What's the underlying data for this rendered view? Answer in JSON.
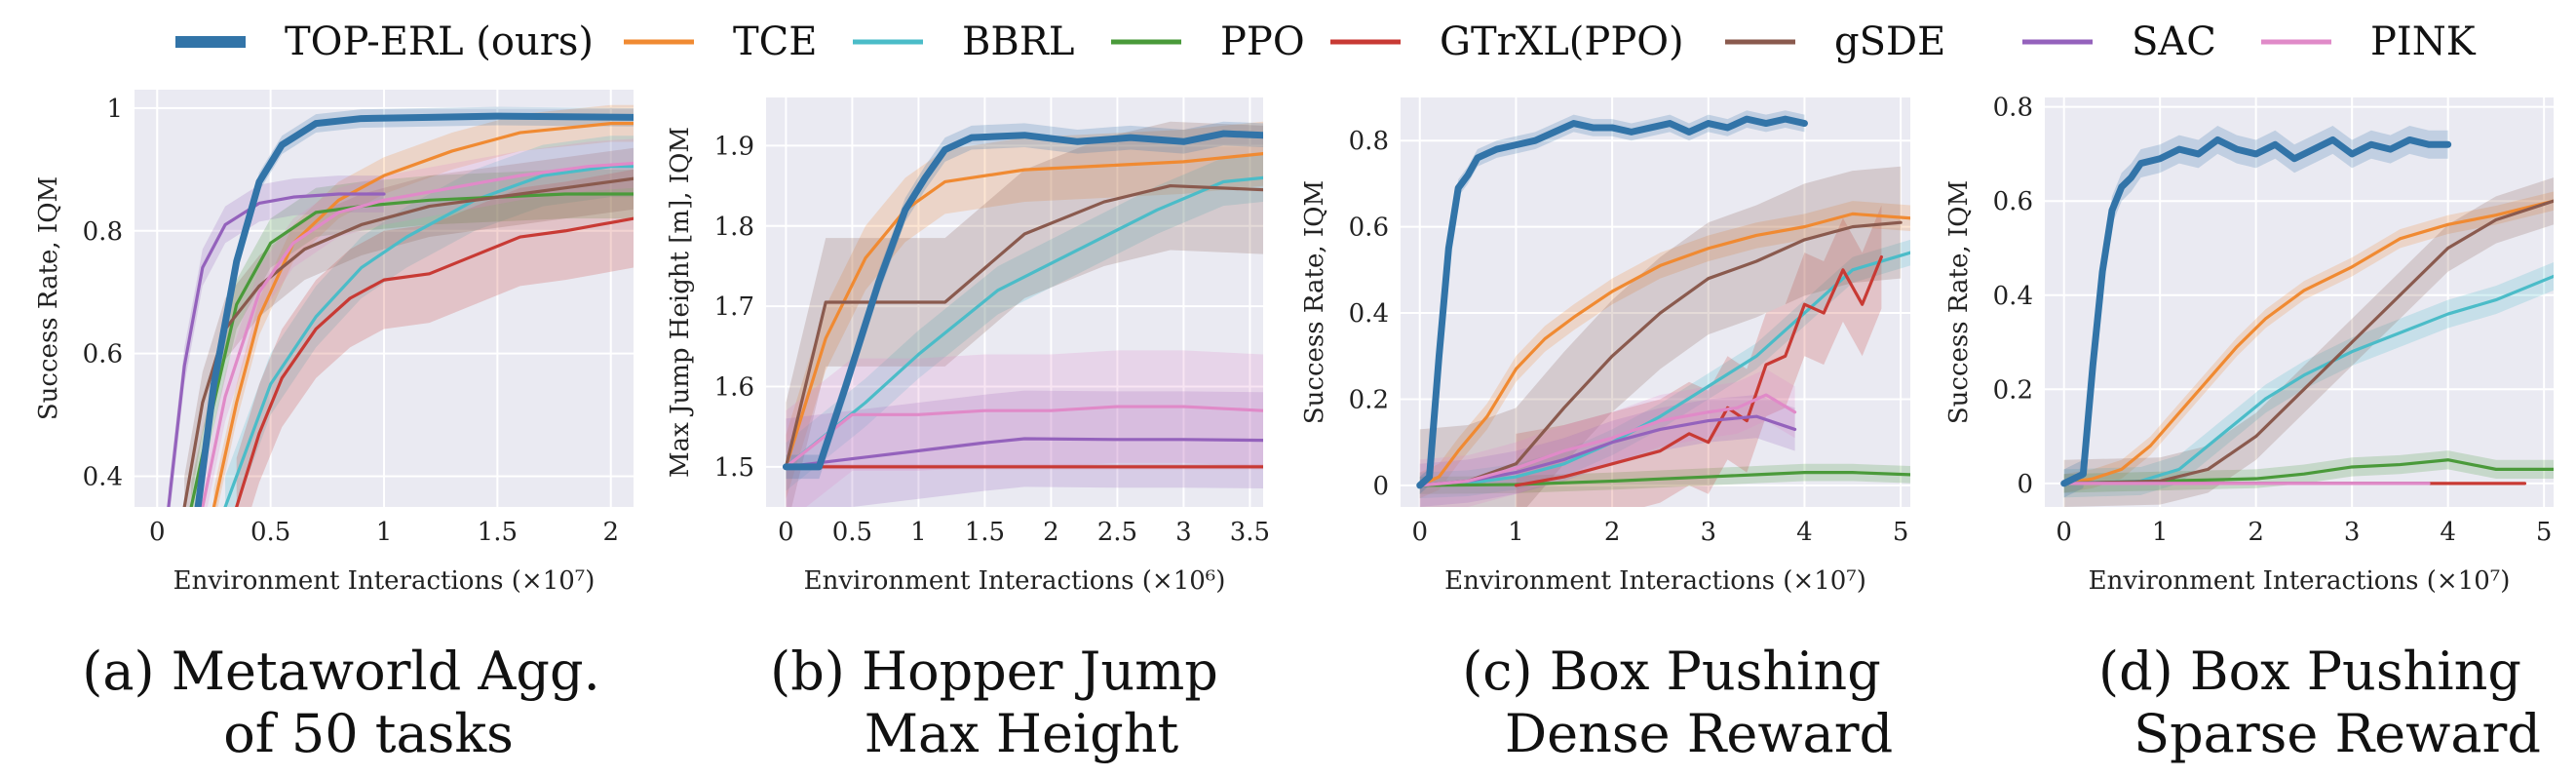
{
  "legend": [
    {
      "name": "TOP-ERL (ours)",
      "color": "#3274a8",
      "bold": true
    },
    {
      "name": "TCE",
      "color": "#f08a32"
    },
    {
      "name": "BBRL",
      "color": "#4bbcc8"
    },
    {
      "name": "PPO",
      "color": "#4a9a3a"
    },
    {
      "name": "GTrXL(PPO)",
      "color": "#c83a34"
    },
    {
      "name": "gSDE",
      "color": "#8a5a4e"
    },
    {
      "name": "SAC",
      "color": "#9462bc"
    },
    {
      "name": "PINK",
      "color": "#e08ac8"
    }
  ],
  "captions": [
    [
      "(a) Metaworld Agg.",
      "of 50 tasks"
    ],
    [
      "(b) Hopper Jump",
      "Max Height"
    ],
    [
      "(c) Box Pushing",
      "Dense Reward"
    ],
    [
      "(d) Box Pushing",
      "Sparse Reward"
    ]
  ],
  "chart_data": [
    {
      "type": "line",
      "xlabel": "Environment Interactions (×10⁷)",
      "ylabel": "Success Rate, IQM",
      "xlim": [
        -0.1,
        2.1
      ],
      "ylim": [
        0.35,
        1.03
      ],
      "xticks": [
        0,
        0.5,
        1,
        1.5,
        2
      ],
      "xtick_labels": [
        "0",
        "0.5",
        "1",
        "1.5",
        "2"
      ],
      "yticks": [
        0.4,
        0.6,
        0.8,
        1.0
      ],
      "ytick_labels": [
        "0.4",
        "0.6",
        "0.8",
        "1"
      ],
      "grid": true,
      "series": [
        {
          "name": "TOP-ERL (ours)",
          "band": 0.015,
          "x": [
            0.18,
            0.25,
            0.35,
            0.45,
            0.55,
            0.7,
            0.9,
            1.2,
            1.5,
            1.8,
            2.1
          ],
          "y": [
            0.35,
            0.55,
            0.75,
            0.88,
            0.94,
            0.975,
            0.983,
            0.985,
            0.987,
            0.986,
            0.985
          ]
        },
        {
          "name": "TCE",
          "band": 0.03,
          "x": [
            0.25,
            0.35,
            0.45,
            0.6,
            0.8,
            1.0,
            1.3,
            1.6,
            2.0,
            2.1
          ],
          "y": [
            0.35,
            0.52,
            0.66,
            0.78,
            0.85,
            0.89,
            0.93,
            0.96,
            0.975,
            0.975
          ]
        },
        {
          "name": "BBRL",
          "band": 0.05,
          "x": [
            0.3,
            0.4,
            0.5,
            0.7,
            0.9,
            1.1,
            1.4,
            1.7,
            2.0,
            2.1
          ],
          "y": [
            0.35,
            0.45,
            0.55,
            0.66,
            0.74,
            0.79,
            0.85,
            0.89,
            0.905,
            0.905
          ]
        },
        {
          "name": "PPO",
          "band": 0.04,
          "x": [
            0.15,
            0.25,
            0.35,
            0.5,
            0.7,
            0.9,
            1.2,
            1.5,
            1.8,
            2.1
          ],
          "y": [
            0.35,
            0.52,
            0.68,
            0.78,
            0.83,
            0.84,
            0.85,
            0.855,
            0.86,
            0.86
          ]
        },
        {
          "name": "GTrXL(PPO)",
          "band": 0.08,
          "x": [
            0.35,
            0.45,
            0.55,
            0.7,
            0.85,
            1.0,
            1.2,
            1.4,
            1.6,
            1.8,
            1.95,
            2.1
          ],
          "y": [
            0.35,
            0.47,
            0.56,
            0.64,
            0.69,
            0.72,
            0.73,
            0.76,
            0.79,
            0.8,
            0.81,
            0.82
          ]
        },
        {
          "name": "gSDE",
          "band": 0.05,
          "x": [
            0.12,
            0.2,
            0.3,
            0.45,
            0.65,
            0.9,
            1.2,
            1.5,
            1.8,
            2.1
          ],
          "y": [
            0.35,
            0.52,
            0.64,
            0.71,
            0.77,
            0.81,
            0.84,
            0.855,
            0.87,
            0.885
          ]
        },
        {
          "name": "SAC",
          "band": 0.03,
          "x": [
            0.05,
            0.12,
            0.2,
            0.3,
            0.45,
            0.6,
            0.8,
            1.0
          ],
          "y": [
            0.35,
            0.58,
            0.74,
            0.81,
            0.845,
            0.855,
            0.86,
            0.86
          ]
        },
        {
          "name": "PINK",
          "band": 0.04,
          "x": [
            0.2,
            0.3,
            0.45,
            0.6,
            0.8,
            1.0,
            1.3,
            1.6,
            1.9,
            2.1
          ],
          "y": [
            0.35,
            0.53,
            0.7,
            0.78,
            0.83,
            0.85,
            0.87,
            0.89,
            0.905,
            0.91
          ]
        }
      ]
    },
    {
      "type": "line",
      "xlabel": "Environment Interactions (×10⁶)",
      "ylabel": "Max Jump Height [m], IQM",
      "xlim": [
        -0.15,
        3.6
      ],
      "ylim": [
        1.45,
        1.96
      ],
      "xticks": [
        0,
        0.5,
        1,
        1.5,
        2,
        2.5,
        3,
        3.5
      ],
      "xtick_labels": [
        "0",
        "0.5",
        "1",
        "1.5",
        "2",
        "2.5",
        "3",
        "3.5"
      ],
      "yticks": [
        1.5,
        1.6,
        1.7,
        1.8,
        1.9
      ],
      "ytick_labels": [
        "1.5",
        "1.6",
        "1.7",
        "1.8",
        "1.9"
      ],
      "grid": true,
      "series": [
        {
          "name": "TOP-ERL (ours)",
          "band": 0.015,
          "x": [
            0,
            0.25,
            0.45,
            0.7,
            0.9,
            1.05,
            1.2,
            1.4,
            1.8,
            2.2,
            2.6,
            3.0,
            3.3,
            3.6
          ],
          "y": [
            1.5,
            1.5,
            1.6,
            1.73,
            1.82,
            1.86,
            1.895,
            1.91,
            1.913,
            1.905,
            1.91,
            1.905,
            1.915,
            1.913
          ]
        },
        {
          "name": "TCE",
          "band": 0.04,
          "x": [
            0,
            0.3,
            0.6,
            0.9,
            1.2,
            1.8,
            2.4,
            3.0,
            3.6
          ],
          "y": [
            1.5,
            1.66,
            1.76,
            1.82,
            1.855,
            1.87,
            1.875,
            1.88,
            1.89
          ]
        },
        {
          "name": "BBRL",
          "band": 0.03,
          "x": [
            0,
            0.3,
            0.6,
            1.0,
            1.6,
            2.2,
            2.8,
            3.3,
            3.6
          ],
          "y": [
            1.5,
            1.54,
            1.58,
            1.64,
            1.72,
            1.77,
            1.82,
            1.855,
            1.86
          ]
        },
        {
          "name": "GTrXL(PPO)",
          "band": 0.003,
          "x": [
            0,
            3.6
          ],
          "y": [
            1.5,
            1.5
          ]
        },
        {
          "name": "gSDE",
          "band": 0.08,
          "x": [
            0,
            0.3,
            1.2,
            1.8,
            2.4,
            2.9,
            3.6
          ],
          "y": [
            1.5,
            1.705,
            1.705,
            1.79,
            1.83,
            1.85,
            1.845
          ]
        },
        {
          "name": "SAC",
          "band": 0.06,
          "x": [
            0,
            0.5,
            1.0,
            1.5,
            1.8,
            2.5,
            3.0,
            3.6
          ],
          "y": [
            1.5,
            1.51,
            1.52,
            1.53,
            1.535,
            1.534,
            1.534,
            1.533
          ]
        },
        {
          "name": "PINK",
          "band": 0.07,
          "x": [
            0,
            0.5,
            1.0,
            1.5,
            2.0,
            2.5,
            3.0,
            3.6
          ],
          "y": [
            1.5,
            1.565,
            1.565,
            1.57,
            1.57,
            1.575,
            1.575,
            1.57
          ]
        }
      ]
    },
    {
      "type": "line",
      "xlabel": "Environment Interactions (×10⁷)",
      "ylabel": "Success Rate, IQM",
      "xlim": [
        -0.2,
        5.1
      ],
      "ylim": [
        -0.05,
        0.9
      ],
      "xticks": [
        0,
        1,
        2,
        3,
        4,
        5
      ],
      "xtick_labels": [
        "0",
        "1",
        "2",
        "3",
        "4",
        "5"
      ],
      "yticks": [
        0,
        0.2,
        0.4,
        0.6,
        0.8
      ],
      "ytick_labels": [
        "0",
        "0.2",
        "0.4",
        "0.6",
        "0.8"
      ],
      "grid": true,
      "series": [
        {
          "name": "TOP-ERL (ours)",
          "band": 0.02,
          "x": [
            0,
            0.1,
            0.2,
            0.3,
            0.4,
            0.5,
            0.6,
            0.7,
            0.8,
            1.0,
            1.2,
            1.4,
            1.6,
            1.8,
            2.0,
            2.2,
            2.4,
            2.6,
            2.8,
            3.0,
            3.2,
            3.4,
            3.6,
            3.8,
            4.0
          ],
          "y": [
            0,
            0.02,
            0.3,
            0.55,
            0.69,
            0.72,
            0.76,
            0.77,
            0.78,
            0.79,
            0.8,
            0.82,
            0.84,
            0.83,
            0.83,
            0.82,
            0.83,
            0.84,
            0.82,
            0.84,
            0.83,
            0.85,
            0.84,
            0.85,
            0.84
          ]
        },
        {
          "name": "TCE",
          "band": 0.03,
          "x": [
            0,
            0.2,
            0.4,
            0.7,
            1.0,
            1.3,
            1.6,
            2.0,
            2.5,
            3.0,
            3.5,
            4.0,
            4.5,
            5.1
          ],
          "y": [
            0,
            0.02,
            0.08,
            0.16,
            0.27,
            0.34,
            0.39,
            0.45,
            0.51,
            0.55,
            0.58,
            0.6,
            0.63,
            0.62
          ]
        },
        {
          "name": "BBRL",
          "band": 0.03,
          "x": [
            0,
            0.5,
            1.0,
            1.5,
            2.0,
            2.5,
            3.0,
            3.5,
            4.0,
            4.5,
            5.1
          ],
          "y": [
            0,
            0.005,
            0.02,
            0.05,
            0.1,
            0.16,
            0.23,
            0.3,
            0.4,
            0.5,
            0.54
          ]
        },
        {
          "name": "PPO",
          "band": 0.02,
          "x": [
            0,
            1.0,
            2.0,
            3.0,
            3.5,
            4.0,
            4.5,
            5.1
          ],
          "y": [
            0,
            0.002,
            0.01,
            0.02,
            0.025,
            0.03,
            0.03,
            0.025
          ]
        },
        {
          "name": "GTrXL(PPO)",
          "band": 0.12,
          "x": [
            1.0,
            1.5,
            2.0,
            2.5,
            2.8,
            3.0,
            3.2,
            3.4,
            3.6,
            3.8,
            4.0,
            4.2,
            4.4,
            4.6,
            4.8
          ],
          "y": [
            0,
            0.02,
            0.05,
            0.08,
            0.12,
            0.1,
            0.18,
            0.15,
            0.28,
            0.3,
            0.42,
            0.4,
            0.5,
            0.42,
            0.53
          ]
        },
        {
          "name": "gSDE",
          "band": 0.13,
          "x": [
            0,
            0.5,
            1.0,
            1.5,
            2.0,
            2.5,
            3.0,
            3.5,
            4.0,
            4.5,
            5.0
          ],
          "y": [
            0,
            0.01,
            0.05,
            0.18,
            0.3,
            0.4,
            0.48,
            0.52,
            0.57,
            0.6,
            0.61
          ]
        },
        {
          "name": "SAC",
          "band": 0.05,
          "x": [
            0,
            0.5,
            1.0,
            1.5,
            2.0,
            2.5,
            3.0,
            3.5,
            3.9
          ],
          "y": [
            0,
            0.01,
            0.03,
            0.06,
            0.1,
            0.13,
            0.15,
            0.16,
            0.13
          ]
        },
        {
          "name": "PINK",
          "band": 0.06,
          "x": [
            0,
            0.5,
            1.0,
            1.5,
            2.0,
            2.5,
            3.0,
            3.3,
            3.6,
            3.9
          ],
          "y": [
            0,
            0.01,
            0.04,
            0.08,
            0.11,
            0.15,
            0.17,
            0.18,
            0.21,
            0.17
          ]
        }
      ]
    },
    {
      "type": "line",
      "xlabel": "Environment Interactions (×10⁷)",
      "ylabel": "Success Rate, IQM",
      "xlim": [
        -0.2,
        5.1
      ],
      "ylim": [
        -0.05,
        0.82
      ],
      "xticks": [
        0,
        1,
        2,
        3,
        4,
        5
      ],
      "xtick_labels": [
        "0",
        "1",
        "2",
        "3",
        "4",
        "5"
      ],
      "yticks": [
        0,
        0.2,
        0.4,
        0.6,
        0.8
      ],
      "ytick_labels": [
        "0",
        "0.2",
        "0.4",
        "0.6",
        "0.8"
      ],
      "grid": true,
      "series": [
        {
          "name": "TOP-ERL (ours)",
          "band": 0.03,
          "x": [
            0,
            0.2,
            0.3,
            0.4,
            0.5,
            0.6,
            0.7,
            0.8,
            1.0,
            1.2,
            1.4,
            1.6,
            1.8,
            2.0,
            2.2,
            2.4,
            2.6,
            2.8,
            3.0,
            3.2,
            3.4,
            3.6,
            3.8,
            4.0
          ],
          "y": [
            0,
            0.02,
            0.25,
            0.45,
            0.58,
            0.63,
            0.65,
            0.68,
            0.69,
            0.71,
            0.7,
            0.73,
            0.71,
            0.7,
            0.72,
            0.69,
            0.71,
            0.73,
            0.7,
            0.72,
            0.71,
            0.73,
            0.72,
            0.72
          ]
        },
        {
          "name": "TCE",
          "band": 0.02,
          "x": [
            0,
            0.3,
            0.6,
            0.9,
            1.2,
            1.5,
            1.8,
            2.1,
            2.5,
            3.0,
            3.5,
            4.0,
            4.5,
            5.1
          ],
          "y": [
            0,
            0.01,
            0.03,
            0.08,
            0.15,
            0.22,
            0.29,
            0.35,
            0.41,
            0.46,
            0.52,
            0.55,
            0.57,
            0.6
          ]
        },
        {
          "name": "BBRL",
          "band": 0.03,
          "x": [
            0,
            0.8,
            1.2,
            1.5,
            1.8,
            2.1,
            2.5,
            3.0,
            3.5,
            4.0,
            4.5,
            5.1
          ],
          "y": [
            0,
            0.005,
            0.03,
            0.08,
            0.13,
            0.18,
            0.23,
            0.28,
            0.32,
            0.36,
            0.39,
            0.44
          ]
        },
        {
          "name": "PPO",
          "band": 0.02,
          "x": [
            0,
            1.0,
            2.0,
            2.5,
            3.0,
            3.5,
            4.0,
            4.5,
            5.1
          ],
          "y": [
            0,
            0.005,
            0.01,
            0.02,
            0.035,
            0.04,
            0.05,
            0.03,
            0.03
          ]
        },
        {
          "name": "GTrXL(PPO)",
          "band": 0.003,
          "x": [
            0,
            4.8
          ],
          "y": [
            0,
            0
          ]
        },
        {
          "name": "gSDE",
          "band": 0.05,
          "x": [
            0,
            1.0,
            1.5,
            2.0,
            2.5,
            3.0,
            3.5,
            4.0,
            4.5,
            5.1
          ],
          "y": [
            0,
            0.005,
            0.03,
            0.1,
            0.2,
            0.3,
            0.4,
            0.5,
            0.56,
            0.6
          ]
        },
        {
          "name": "SAC",
          "band": 0.003,
          "x": [
            0,
            3.8
          ],
          "y": [
            0,
            0
          ]
        },
        {
          "name": "PINK",
          "band": 0.003,
          "x": [
            0,
            3.8
          ],
          "y": [
            0,
            0
          ]
        }
      ]
    }
  ]
}
